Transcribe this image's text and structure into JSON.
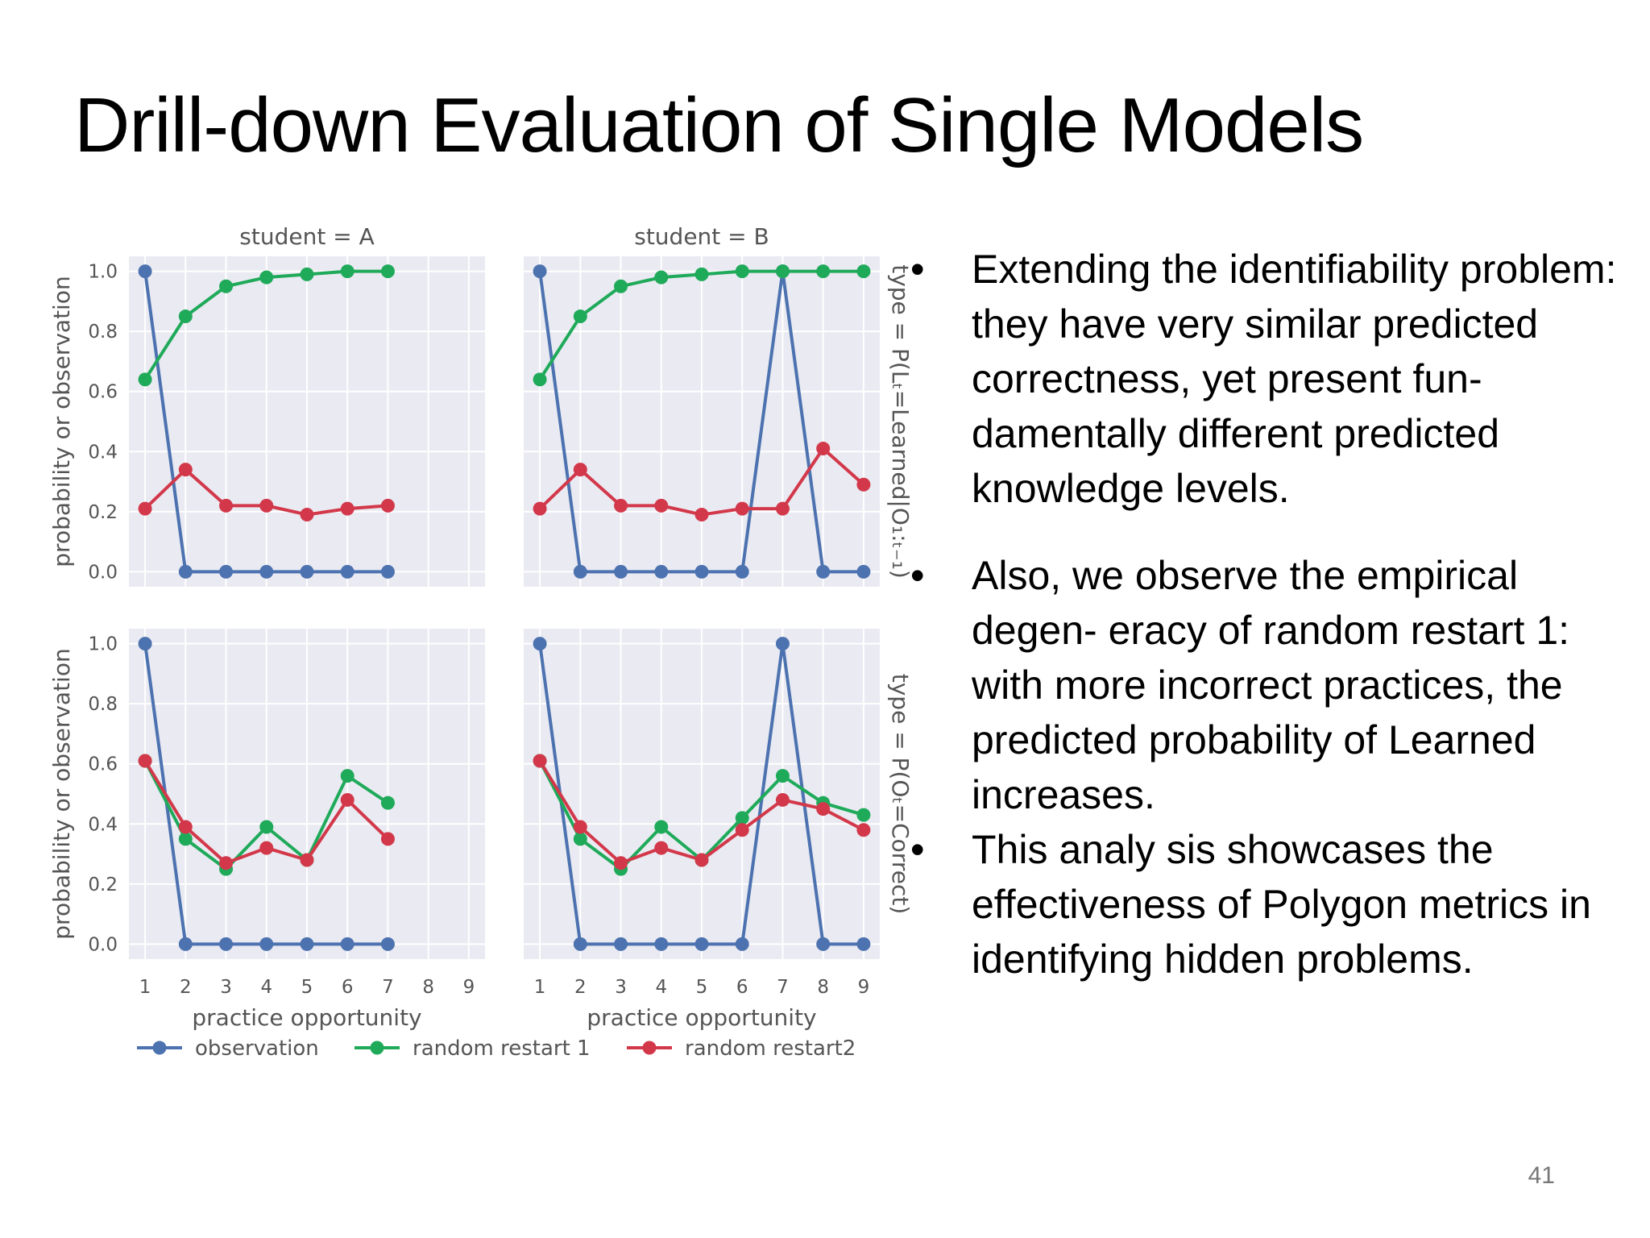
{
  "slide": {
    "title": "Drill-down Evaluation of Single Models",
    "page_number": "41"
  },
  "bullets": [
    {
      "text": "Extending the identifiability problem:  they have very similar predicted correctness, yet present fun- damentally different predicted knowledge levels."
    },
    {
      "text": "Also, we observe the empirical degen- eracy of random restart 1: with more incorrect practices, the predicted probability of Learned increases."
    },
    {
      "text": "This analy sis showcases the effectiveness of Polygon metrics in identifying hidden problems."
    }
  ],
  "colors": {
    "observation": "#4C72B0",
    "random_restart_1": "#1FAA5A",
    "random_restart_2": "#D2384A",
    "panel_bg": "#EAEAF2",
    "grid": "#FFFFFF"
  },
  "chart_data": {
    "type": "line",
    "facet_columns": [
      "student = A",
      "student = B"
    ],
    "facet_rows": [
      "type = P(Lₜ=Learned|O₁:ₜ₋₁)",
      "type = P(Oₜ=Correct)"
    ],
    "xlabel": "practice opportunity",
    "ylabel": "probability or observation",
    "x_ticks": [
      "1",
      "2",
      "3",
      "4",
      "5",
      "6",
      "7",
      "8",
      "9"
    ],
    "y_ticks": [
      "0.0",
      "0.2",
      "0.4",
      "0.6",
      "0.8",
      "1.0"
    ],
    "xlim": [
      0.6,
      9.4
    ],
    "ylim": [
      -0.05,
      1.05
    ],
    "legend": [
      "observation",
      "random restart 1",
      "random restart2"
    ],
    "legend_position": "bottom",
    "grid": true,
    "panels": [
      {
        "row": 0,
        "col": 0,
        "series": [
          {
            "name": "observation",
            "x": [
              1,
              2,
              3,
              4,
              5,
              6,
              7
            ],
            "y": [
              1.0,
              0,
              0,
              0,
              0,
              0,
              0
            ]
          },
          {
            "name": "random restart 1",
            "x": [
              1,
              2,
              3,
              4,
              5,
              6,
              7
            ],
            "y": [
              0.64,
              0.85,
              0.95,
              0.98,
              0.99,
              1.0,
              1.0
            ]
          },
          {
            "name": "random restart2",
            "x": [
              1,
              2,
              3,
              4,
              5,
              6,
              7
            ],
            "y": [
              0.21,
              0.34,
              0.22,
              0.22,
              0.19,
              0.21,
              0.22
            ]
          }
        ]
      },
      {
        "row": 0,
        "col": 1,
        "series": [
          {
            "name": "observation",
            "x": [
              1,
              2,
              3,
              4,
              5,
              6,
              7,
              8,
              9
            ],
            "y": [
              1.0,
              0,
              0,
              0,
              0,
              0,
              1.0,
              0,
              0
            ]
          },
          {
            "name": "random restart 1",
            "x": [
              1,
              2,
              3,
              4,
              5,
              6,
              7,
              8,
              9
            ],
            "y": [
              0.64,
              0.85,
              0.95,
              0.98,
              0.99,
              1.0,
              1.0,
              1.0,
              1.0
            ]
          },
          {
            "name": "random restart2",
            "x": [
              1,
              2,
              3,
              4,
              5,
              6,
              7,
              8,
              9
            ],
            "y": [
              0.21,
              0.34,
              0.22,
              0.22,
              0.19,
              0.21,
              0.21,
              0.41,
              0.29
            ]
          }
        ]
      },
      {
        "row": 1,
        "col": 0,
        "series": [
          {
            "name": "observation",
            "x": [
              1,
              2,
              3,
              4,
              5,
              6,
              7
            ],
            "y": [
              1.0,
              0,
              0,
              0,
              0,
              0,
              0
            ]
          },
          {
            "name": "random restart 1",
            "x": [
              1,
              2,
              3,
              4,
              5,
              6,
              7
            ],
            "y": [
              0.61,
              0.35,
              0.25,
              0.39,
              0.28,
              0.56,
              0.47
            ]
          },
          {
            "name": "random restart2",
            "x": [
              1,
              2,
              3,
              4,
              5,
              6,
              7
            ],
            "y": [
              0.61,
              0.39,
              0.27,
              0.32,
              0.28,
              0.48,
              0.35
            ]
          }
        ]
      },
      {
        "row": 1,
        "col": 1,
        "series": [
          {
            "name": "observation",
            "x": [
              1,
              2,
              3,
              4,
              5,
              6,
              7,
              8,
              9
            ],
            "y": [
              1.0,
              0,
              0,
              0,
              0,
              0,
              1.0,
              0,
              0
            ]
          },
          {
            "name": "random restart 1",
            "x": [
              1,
              2,
              3,
              4,
              5,
              6,
              7,
              8,
              9
            ],
            "y": [
              0.61,
              0.35,
              0.25,
              0.39,
              0.28,
              0.42,
              0.56,
              0.47,
              0.43
            ]
          },
          {
            "name": "random restart2",
            "x": [
              1,
              2,
              3,
              4,
              5,
              6,
              7,
              8,
              9
            ],
            "y": [
              0.61,
              0.39,
              0.27,
              0.32,
              0.28,
              0.38,
              0.48,
              0.45,
              0.38
            ]
          }
        ]
      }
    ]
  }
}
